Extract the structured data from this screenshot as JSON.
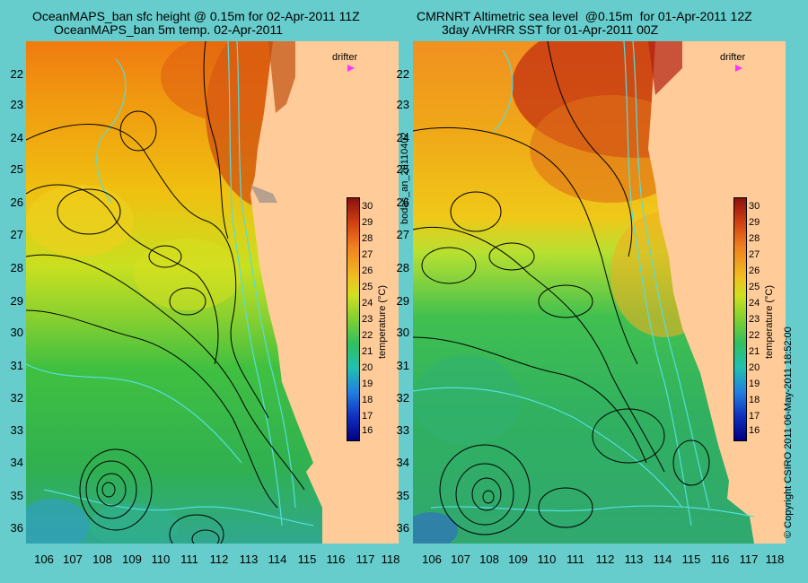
{
  "left_panel": {
    "title_line1": "OceanMAPS_ban sfc height @ 0.15m for 02-Apr-2011 11Z",
    "title_line2": "OceanMAPS_ban 5m temp. 02-Apr-2011",
    "drifter_label": "drifter",
    "colorbar_title": "temperature (°C)"
  },
  "right_panel": {
    "title_line1": "CMRNRT Altimetric sea level  @0.15m  for 01-Apr-2011 12Z",
    "title_line2": "3day AVHRR SST for 01-Apr-2011 00Z",
    "drifter_label": "drifter",
    "colorbar_title": "temperature (°C)"
  },
  "middle_vertical_label": "bodas_an_20110402",
  "right_vertical_label": "© Copyright CSIRO 2011  06-May-2011 18:52:00",
  "y_ticks": [
    "22",
    "23",
    "24",
    "25",
    "26",
    "27",
    "28",
    "29",
    "30",
    "31",
    "32",
    "33",
    "34",
    "35",
    "36"
  ],
  "x_ticks": [
    "106",
    "107",
    "108",
    "109",
    "110",
    "111",
    "112",
    "113",
    "114",
    "115",
    "116",
    "117",
    "118"
  ],
  "colorbar_ticks": [
    "30",
    "29",
    "28",
    "27",
    "26",
    "25",
    "24",
    "23",
    "22",
    "21",
    "20",
    "19",
    "18",
    "17",
    "16"
  ],
  "colors": {
    "background": "#66cccc",
    "land": "#ffcc99",
    "drifter": "#ff33ff",
    "contour": "#000000",
    "isobath": "#55dddd"
  }
}
